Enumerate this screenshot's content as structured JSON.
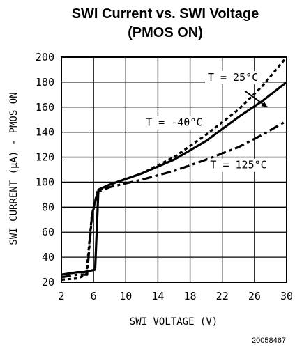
{
  "chart_data": {
    "type": "line",
    "title": [
      "SWI Current vs. SWI Voltage",
      "(PMOS ON)"
    ],
    "xlabel": "SWI VOLTAGE (V)",
    "ylabel": "SWI CURRENT (μA) - PMOS ON",
    "xlim": [
      2,
      30
    ],
    "ylim": [
      20,
      200
    ],
    "x_ticks": [
      "2",
      "6",
      "10",
      "14",
      "18",
      "22",
      "26",
      "30"
    ],
    "y_ticks": [
      "20",
      "40",
      "60",
      "80",
      "100",
      "120",
      "140",
      "160",
      "180",
      "200"
    ],
    "grid": true,
    "series": [
      {
        "name": "T = 25°C",
        "style": "dotted",
        "points": [
          [
            2,
            22
          ],
          [
            4,
            23
          ],
          [
            5.1,
            26
          ],
          [
            5.8,
            74
          ],
          [
            6.5,
            93
          ],
          [
            8,
            98
          ],
          [
            12,
            107
          ],
          [
            16,
            120
          ],
          [
            20,
            138
          ],
          [
            24,
            158
          ],
          [
            27,
            177
          ],
          [
            30,
            200
          ]
        ]
      },
      {
        "name": "T = -40°C",
        "style": "solid",
        "points": [
          [
            2,
            26
          ],
          [
            4,
            28
          ],
          [
            4.8,
            28
          ],
          [
            6.2,
            30
          ],
          [
            6.6,
            94
          ],
          [
            8,
            98
          ],
          [
            12,
            107
          ],
          [
            16,
            118
          ],
          [
            20,
            133
          ],
          [
            24,
            152
          ],
          [
            27,
            165
          ],
          [
            30,
            180
          ]
        ]
      },
      {
        "name": "T = 125°C",
        "style": "dash-dot",
        "points": [
          [
            2,
            24
          ],
          [
            4,
            26
          ],
          [
            5.2,
            26
          ],
          [
            5.8,
            73
          ],
          [
            6.5,
            92
          ],
          [
            8,
            96
          ],
          [
            12,
            102
          ],
          [
            16,
            109
          ],
          [
            20,
            118
          ],
          [
            24,
            128
          ],
          [
            27,
            138
          ],
          [
            30,
            149
          ]
        ]
      }
    ],
    "annotations": [
      {
        "text": "T = 25°C",
        "x": 20.2,
        "y": 181
      },
      {
        "text": "T = -40°C",
        "x": 12.5,
        "y": 145
      },
      {
        "text": "T = 125°C",
        "x": 20.5,
        "y": 111
      }
    ]
  },
  "figure_id": "20058467"
}
